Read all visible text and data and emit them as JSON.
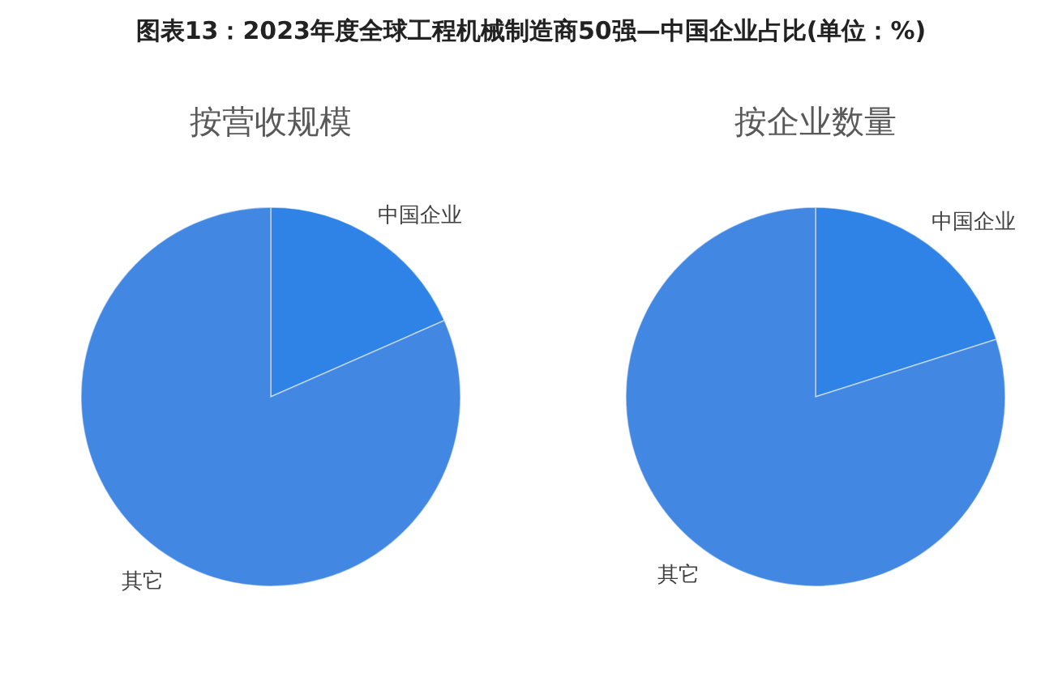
{
  "chart_data": [
    {
      "type": "pie",
      "title": "按营收规模",
      "annotations": [
        "图表13：2023年度全球工程机械制造商50强—中国企业占比(单位：%)"
      ],
      "categories": [
        "中国企业",
        "其它"
      ],
      "values": [
        18.4,
        81.6
      ],
      "colors": [
        "#2f83e6",
        "#4287e2"
      ]
    },
    {
      "type": "pie",
      "title": "按企业数量",
      "categories": [
        "中国企业",
        "其它"
      ],
      "values": [
        20.1,
        79.9
      ],
      "colors": [
        "#2f83e6",
        "#4287e2"
      ]
    }
  ]
}
